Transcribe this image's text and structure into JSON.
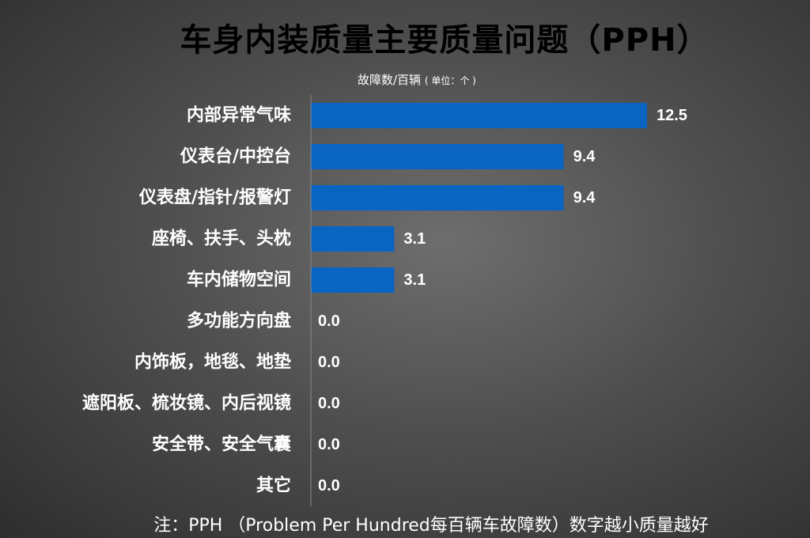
{
  "title": "车身内装质量主要质量问题（PPH）",
  "unit_label": "故障数/百辆",
  "unit_note": "( 单位：个 )",
  "footnote": "注：PPH （Problem Per Hundred每百辆车故障数）数字越小质量越好",
  "colors": {
    "bar": "#0a64c2",
    "text": "#ffffff",
    "title": "#000000"
  },
  "chart_data": {
    "type": "bar",
    "orientation": "horizontal",
    "title": "车身内装质量主要质量问题（PPH）",
    "xlabel": "故障数/百辆 ( 单位：个 )",
    "ylabel": "",
    "xlim": [
      0,
      12.5
    ],
    "grid": false,
    "legend": "none",
    "categories": [
      "内部异常气味",
      "仪表台/中控台",
      "仪表盘/指针/报警灯",
      "座椅、扶手、头枕",
      "车内储物空间",
      "多功能方向盘",
      "内饰板，地毯、地垫",
      "遮阳板、梳妆镜、内后视镜",
      "安全带、安全气囊",
      "其它"
    ],
    "values": [
      12.5,
      9.4,
      9.4,
      3.1,
      3.1,
      0.0,
      0.0,
      0.0,
      0.0,
      0.0
    ],
    "value_labels": [
      "12.5",
      "9.4",
      "9.4",
      "3.1",
      "3.1",
      "0.0",
      "0.0",
      "0.0",
      "0.0",
      "0.0"
    ]
  }
}
